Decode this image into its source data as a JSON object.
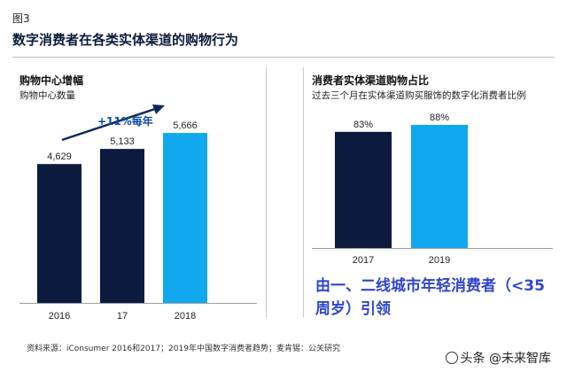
{
  "figure_label": "图3",
  "main_title": "数字消费者在各类实体渠道的购物行为",
  "colors": {
    "dark_navy": "#0c1a3d",
    "light_blue": "#11a8ee",
    "arrow": "#0a2a5e"
  },
  "chart_data": [
    {
      "type": "bar",
      "title": "购物中心增幅",
      "subtitle": "购物中心数量",
      "categories": [
        "2016",
        "17",
        "2018"
      ],
      "values": [
        4629,
        5133,
        5666
      ],
      "value_labels": [
        "4,629",
        "5,133",
        "5,666"
      ],
      "bar_colors": [
        "#0c1a3d",
        "#0c1a3d",
        "#11a8ee"
      ],
      "annotation": "+11%每年",
      "ylim": [
        0,
        6200
      ]
    },
    {
      "type": "bar",
      "title": "消费者实体渠道购物占比",
      "subtitle": "过去三个月在实体渠道购买服饰的数字化消费者比例",
      "categories": [
        "2017",
        "2019"
      ],
      "values": [
        83,
        88
      ],
      "value_labels": [
        "83%",
        "88%"
      ],
      "bar_colors": [
        "#0c1a3d",
        "#11a8ee"
      ],
      "ylim": [
        0,
        100
      ]
    }
  ],
  "highlight_text": "由一、二线城市年轻消费者（<35周岁）引领",
  "source_note": "资料来源：iConsumer 2016和2017；2019年中国数字消费者趋势；麦肯锡：公关研究",
  "watermark": "头条 @未来智库"
}
